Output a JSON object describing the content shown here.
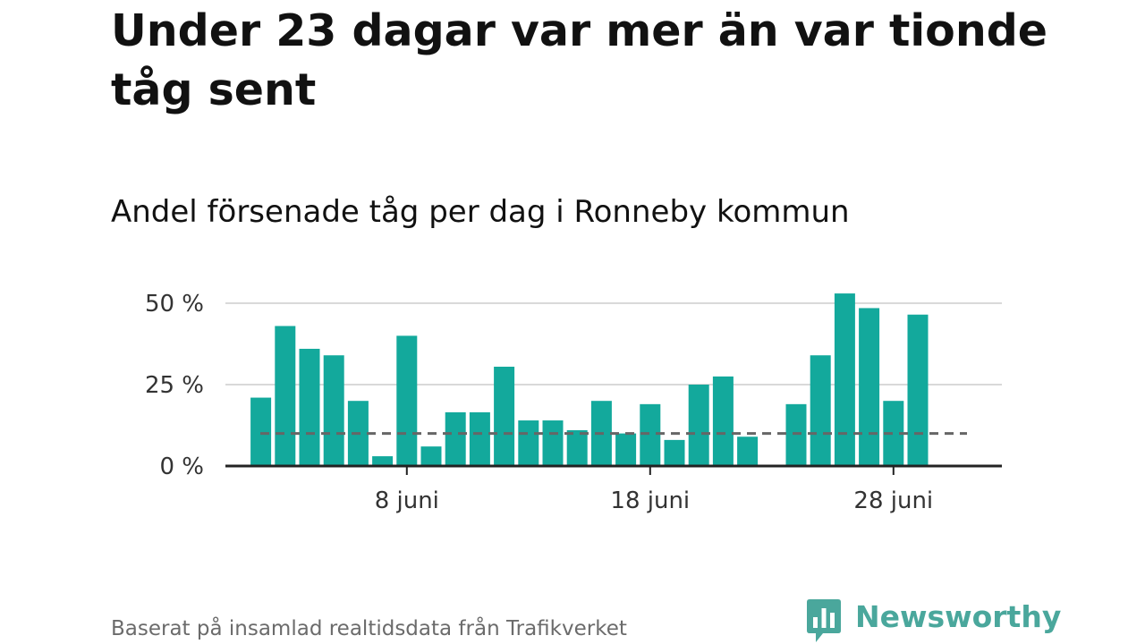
{
  "title": "Under 23 dagar var mer än var tionde tåg sent",
  "subtitle": "Andel försenade tåg per dag i Ronneby kommun",
  "source": "Baserat på insamlad realtidsdata från Trafikverket",
  "brand": {
    "name": "Newsworthy",
    "icon": "newsworthy-chart-bubble-icon"
  },
  "colors": {
    "bar": "#13a99c",
    "reference_line": "#666666",
    "grid": "#d9d9d9",
    "axis": "#222222",
    "brand": "#4aa79c"
  },
  "chart_data": {
    "type": "bar",
    "x": [
      "2024-06-02",
      "2024-06-03",
      "2024-06-04",
      "2024-06-05",
      "2024-06-06",
      "2024-06-07",
      "2024-06-08",
      "2024-06-09",
      "2024-06-10",
      "2024-06-11",
      "2024-06-12",
      "2024-06-13",
      "2024-06-14",
      "2024-06-15",
      "2024-06-16",
      "2024-06-17",
      "2024-06-18",
      "2024-06-19",
      "2024-06-20",
      "2024-06-21",
      "2024-06-22",
      "2024-06-23",
      "2024-06-24",
      "2024-06-25",
      "2024-06-26",
      "2024-06-27",
      "2024-06-28",
      "2024-06-29"
    ],
    "values": [
      21,
      43,
      36,
      34,
      20,
      3,
      40,
      6,
      16.5,
      16.5,
      30.5,
      14,
      14,
      11,
      20,
      10,
      19,
      8,
      25,
      27.5,
      9,
      null,
      19,
      34,
      53,
      48.5,
      20,
      46.5
    ],
    "unit": "%",
    "reference_line": 10,
    "ylim": [
      0,
      50
    ],
    "y_ticks": [
      {
        "value": 0,
        "label": "0 %"
      },
      {
        "value": 25,
        "label": "25 %"
      },
      {
        "value": 50,
        "label": "50 %"
      }
    ],
    "x_ticks": [
      {
        "index": 6,
        "label": "8 juni"
      },
      {
        "index": 16,
        "label": "18 juni"
      },
      {
        "index": 26,
        "label": "28 juni"
      }
    ],
    "grid": true,
    "xlabel": "",
    "ylabel": ""
  }
}
